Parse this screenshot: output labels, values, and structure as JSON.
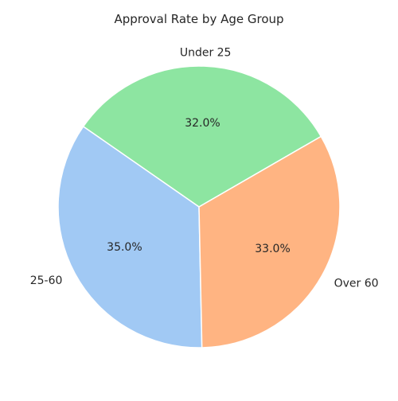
{
  "chart_data": {
    "type": "pie",
    "title": "Approval Rate by Age Group",
    "categories": [
      "Under 25",
      "25-60",
      "Over 60"
    ],
    "values": [
      32.0,
      35.0,
      33.0
    ],
    "value_labels": [
      "32.0%",
      "35.0%",
      "33.0%"
    ],
    "colors": [
      "#8de5a1",
      "#a1c9f4",
      "#ffb482"
    ],
    "start_angle_deg": 30,
    "direction": "counterclockwise",
    "legend": "none"
  }
}
